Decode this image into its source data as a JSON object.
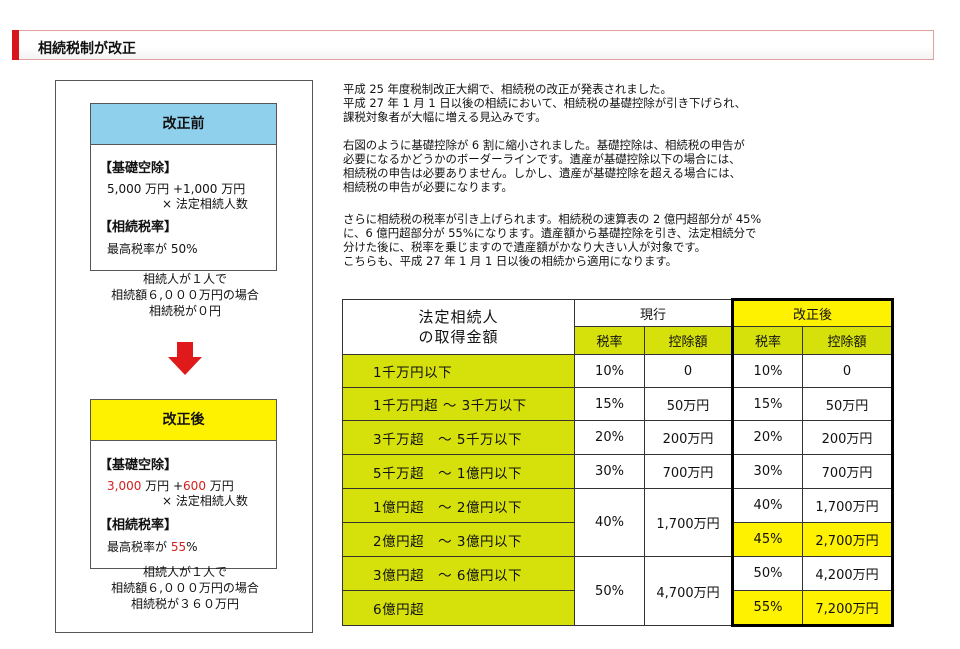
{
  "header": {
    "title": "相続税制が改正"
  },
  "before": {
    "heading": "改正前",
    "deduction_title": "【基礎空除】",
    "deduction_base": "5,000",
    "deduction_mid": " 万円 +",
    "deduction_per": "1,000",
    "deduction_end": " 万円",
    "deduction_line2": "× 法定相続人数",
    "rate_title": "【相続税率】",
    "rate_prefix": "最高税率が ",
    "rate_value": "50%",
    "caption": [
      "相続人が１人で",
      "相続額６,０００万円の場合",
      "相続税が０円"
    ]
  },
  "after": {
    "heading": "改正後",
    "deduction_title": "【基礎空除】",
    "deduction_base": "3,000",
    "deduction_mid": " 万円 +",
    "deduction_per": "600",
    "deduction_end": " 万円",
    "deduction_line2": "× 法定相続人数",
    "rate_title": "【相続税率】",
    "rate_prefix": "最高税率が ",
    "rate_value": "55",
    "rate_suffix": "%",
    "caption": [
      "相続人が１人で",
      "相続額６,０００万円の場合",
      "相続税が３６０万円"
    ]
  },
  "paragraphs": [
    [
      "平成 25 年度税制改正大綱で、相続税の改正が発表されました。",
      "平成 27 年 1 月 1 日以後の相続において、相続税の基礎控除が引き下げられ、",
      "課税対象者が大幅に増える見込みです。"
    ],
    [
      "右図のように基礎控除が 6 割に縮小されました。基礎控除は、相続税の申告が",
      "必要になるかどうかのボーダーラインです。遺産が基礎控除以下の場合には、",
      "相続税の申告は必要ありません。しかし、遺産が基礎控除を超える場合には、",
      "相続税の申告が必要になります。"
    ],
    [
      "さらに相続税の税率が引き上げられます。相続税の速算表の 2 億円超部分が 45%",
      "に、6 億円超部分が 55%になります。遺産額から基礎控除を引き、法定相続分で",
      "分けた後に、税率を乗じますので遺産額がかなり大きい人が対象です。",
      "こちらも、平成 27 年 1 月 1 日以後の相続から適用になります。"
    ]
  ],
  "table": {
    "head_main": [
      "法定相続人",
      "の取得金額"
    ],
    "current": "現行",
    "revised": "改正後",
    "rate_label": "税率",
    "deduction_label": "控除額",
    "rows": [
      {
        "amount": "1千万円以下",
        "cur_rate": "10%",
        "cur_ded": "0",
        "new_rate": "10%",
        "new_ded": "0"
      },
      {
        "amount": "1千万円超 〜 3千万以下",
        "cur_rate": "15%",
        "cur_ded": "50万円",
        "new_rate": "15%",
        "new_ded": "50万円"
      },
      {
        "amount": "3千万超　〜 5千万以下",
        "cur_rate": "20%",
        "cur_ded": "200万円",
        "new_rate": "20%",
        "new_ded": "200万円"
      },
      {
        "amount": "5千万超　〜 1億円以下",
        "cur_rate": "30%",
        "cur_ded": "700万円",
        "new_rate": "30%",
        "new_ded": "700万円"
      },
      {
        "amount": "1億円超　〜 2億円以下",
        "cur_rate": "40%",
        "cur_ded": "1,700万円",
        "new_rate": "40%",
        "new_ded": "1,700万円"
      },
      {
        "amount": "2億円超　〜 3億円以下",
        "new_rate": "45%",
        "new_ded": "2,700万円"
      },
      {
        "amount": "3億円超　〜 6億円以下",
        "cur_rate": "50%",
        "cur_ded": "4,700万円",
        "new_rate": "50%",
        "new_ded": "4,200万円"
      },
      {
        "amount": "6億円超",
        "new_rate": "55%",
        "new_ded": "7,200万円"
      }
    ]
  }
}
